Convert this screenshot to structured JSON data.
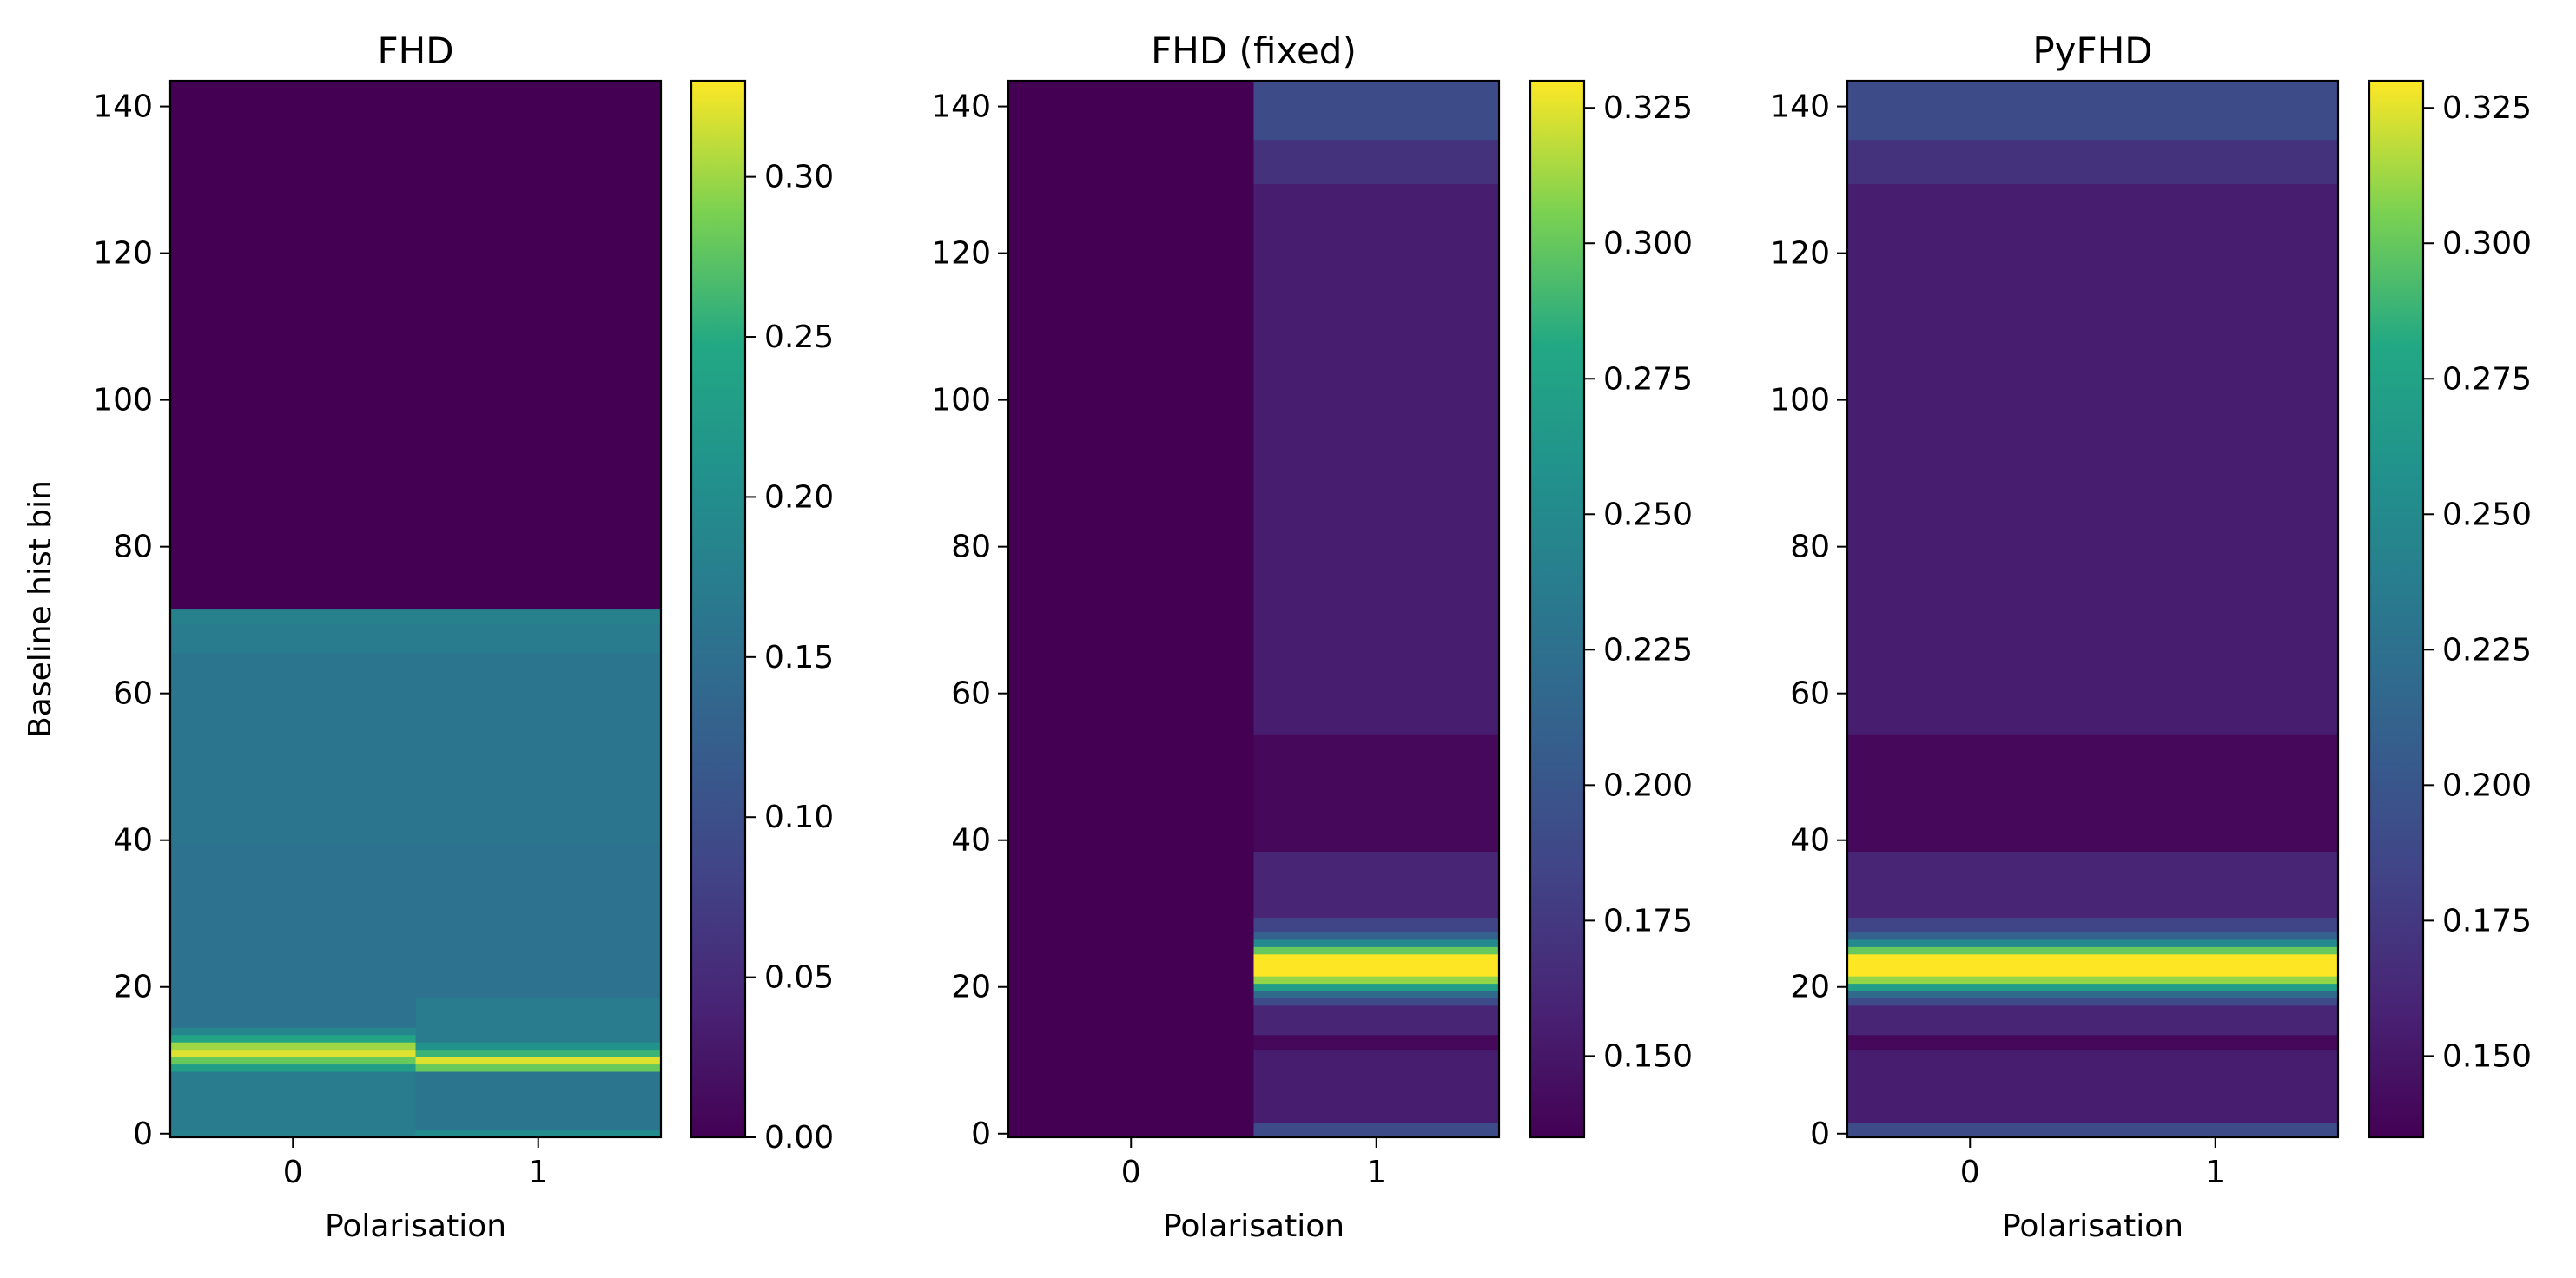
{
  "chart_data": [
    {
      "type": "heatmap",
      "title": "FHD",
      "xlabel": "Polarisation",
      "ylabel": "Baseline hist bin",
      "x": [
        0,
        1
      ],
      "xticks": [
        "0",
        "1"
      ],
      "ylim": [
        -0.5,
        143.5
      ],
      "yticks": [
        "0",
        "20",
        "40",
        "60",
        "80",
        "100",
        "120",
        "140"
      ],
      "colormap": "viridis",
      "colorbar": {
        "vmin": 0.0,
        "vmax": 0.33,
        "ticks": [
          "0.00",
          "0.05",
          "0.10",
          "0.15",
          "0.20",
          "0.25",
          "0.30"
        ]
      },
      "columns": [
        {
          "x": 0,
          "segments": [
            {
              "from": 0,
              "to": 1,
              "value": 0.18
            },
            {
              "from": 1,
              "to": 9,
              "value": 0.17
            },
            {
              "from": 9,
              "to": 10,
              "value": 0.23
            },
            {
              "from": 10,
              "to": 11,
              "value": 0.28
            },
            {
              "from": 11,
              "to": 12,
              "value": 0.32
            },
            {
              "from": 12,
              "to": 13,
              "value": 0.3
            },
            {
              "from": 13,
              "to": 14,
              "value": 0.24
            },
            {
              "from": 14,
              "to": 15,
              "value": 0.19
            },
            {
              "from": 15,
              "to": 40,
              "value": 0.155
            },
            {
              "from": 40,
              "to": 66,
              "value": 0.16
            },
            {
              "from": 66,
              "to": 70,
              "value": 0.17
            },
            {
              "from": 70,
              "to": 72,
              "value": 0.18
            },
            {
              "from": 72,
              "to": 144,
              "value": 0.0
            }
          ]
        },
        {
          "x": 1,
          "segments": [
            {
              "from": 0,
              "to": 1,
              "value": 0.2
            },
            {
              "from": 1,
              "to": 9,
              "value": 0.16
            },
            {
              "from": 9,
              "to": 10,
              "value": 0.28
            },
            {
              "from": 10,
              "to": 11,
              "value": 0.32
            },
            {
              "from": 11,
              "to": 12,
              "value": 0.26
            },
            {
              "from": 12,
              "to": 13,
              "value": 0.21
            },
            {
              "from": 13,
              "to": 19,
              "value": 0.17
            },
            {
              "from": 19,
              "to": 40,
              "value": 0.155
            },
            {
              "from": 40,
              "to": 66,
              "value": 0.16
            },
            {
              "from": 66,
              "to": 70,
              "value": 0.17
            },
            {
              "from": 70,
              "to": 72,
              "value": 0.18
            },
            {
              "from": 72,
              "to": 144,
              "value": 0.0
            }
          ]
        }
      ]
    },
    {
      "type": "heatmap",
      "title": "FHD (fixed)",
      "xlabel": "Polarisation",
      "ylabel": "",
      "x": [
        0,
        1
      ],
      "xticks": [
        "0",
        "1"
      ],
      "ylim": [
        -0.5,
        143.5
      ],
      "yticks": [
        "0",
        "20",
        "40",
        "60",
        "80",
        "100",
        "120",
        "140"
      ],
      "colormap": "viridis",
      "colorbar": {
        "vmin": 0.135,
        "vmax": 0.33,
        "ticks": [
          "0.150",
          "0.175",
          "0.200",
          "0.225",
          "0.250",
          "0.275",
          "0.300",
          "0.325"
        ]
      },
      "columns": [
        {
          "x": 0,
          "segments": [
            {
              "from": 0,
              "to": 144,
              "value": 0.135
            }
          ]
        },
        {
          "x": 1,
          "segments": [
            {
              "from": 0,
              "to": 2,
              "value": 0.19
            },
            {
              "from": 2,
              "to": 12,
              "value": 0.155
            },
            {
              "from": 12,
              "to": 14,
              "value": 0.14
            },
            {
              "from": 14,
              "to": 18,
              "value": 0.16
            },
            {
              "from": 18,
              "to": 19,
              "value": 0.19
            },
            {
              "from": 19,
              "to": 20,
              "value": 0.22
            },
            {
              "from": 20,
              "to": 21,
              "value": 0.27
            },
            {
              "from": 21,
              "to": 22,
              "value": 0.31
            },
            {
              "from": 22,
              "to": 25,
              "value": 0.33
            },
            {
              "from": 25,
              "to": 26,
              "value": 0.3
            },
            {
              "from": 26,
              "to": 27,
              "value": 0.25
            },
            {
              "from": 27,
              "to": 28,
              "value": 0.21
            },
            {
              "from": 28,
              "to": 30,
              "value": 0.185
            },
            {
              "from": 30,
              "to": 39,
              "value": 0.16
            },
            {
              "from": 39,
              "to": 55,
              "value": 0.14
            },
            {
              "from": 55,
              "to": 130,
              "value": 0.155
            },
            {
              "from": 130,
              "to": 136,
              "value": 0.17
            },
            {
              "from": 136,
              "to": 144,
              "value": 0.19
            }
          ]
        }
      ]
    },
    {
      "type": "heatmap",
      "title": "PyFHD",
      "xlabel": "Polarisation",
      "ylabel": "",
      "x": [
        0,
        1
      ],
      "xticks": [
        "0",
        "1"
      ],
      "ylim": [
        -0.5,
        143.5
      ],
      "yticks": [
        "0",
        "20",
        "40",
        "60",
        "80",
        "100",
        "120",
        "140"
      ],
      "colormap": "viridis",
      "colorbar": {
        "vmin": 0.135,
        "vmax": 0.33,
        "ticks": [
          "0.150",
          "0.175",
          "0.200",
          "0.225",
          "0.250",
          "0.275",
          "0.300",
          "0.325"
        ]
      },
      "columns": [
        {
          "x": 0,
          "segments": [
            {
              "from": 0,
              "to": 2,
              "value": 0.19
            },
            {
              "from": 2,
              "to": 12,
              "value": 0.155
            },
            {
              "from": 12,
              "to": 14,
              "value": 0.14
            },
            {
              "from": 14,
              "to": 18,
              "value": 0.16
            },
            {
              "from": 18,
              "to": 19,
              "value": 0.19
            },
            {
              "from": 19,
              "to": 20,
              "value": 0.22
            },
            {
              "from": 20,
              "to": 21,
              "value": 0.27
            },
            {
              "from": 21,
              "to": 22,
              "value": 0.31
            },
            {
              "from": 22,
              "to": 25,
              "value": 0.33
            },
            {
              "from": 25,
              "to": 26,
              "value": 0.3
            },
            {
              "from": 26,
              "to": 27,
              "value": 0.25
            },
            {
              "from": 27,
              "to": 28,
              "value": 0.21
            },
            {
              "from": 28,
              "to": 30,
              "value": 0.185
            },
            {
              "from": 30,
              "to": 39,
              "value": 0.16
            },
            {
              "from": 39,
              "to": 55,
              "value": 0.14
            },
            {
              "from": 55,
              "to": 130,
              "value": 0.155
            },
            {
              "from": 130,
              "to": 136,
              "value": 0.17
            },
            {
              "from": 136,
              "to": 144,
              "value": 0.19
            }
          ]
        },
        {
          "x": 1,
          "segments": [
            {
              "from": 0,
              "to": 2,
              "value": 0.19
            },
            {
              "from": 2,
              "to": 12,
              "value": 0.155
            },
            {
              "from": 12,
              "to": 14,
              "value": 0.14
            },
            {
              "from": 14,
              "to": 18,
              "value": 0.16
            },
            {
              "from": 18,
              "to": 19,
              "value": 0.19
            },
            {
              "from": 19,
              "to": 20,
              "value": 0.22
            },
            {
              "from": 20,
              "to": 21,
              "value": 0.27
            },
            {
              "from": 21,
              "to": 22,
              "value": 0.31
            },
            {
              "from": 22,
              "to": 25,
              "value": 0.33
            },
            {
              "from": 25,
              "to": 26,
              "value": 0.3
            },
            {
              "from": 26,
              "to": 27,
              "value": 0.25
            },
            {
              "from": 27,
              "to": 28,
              "value": 0.21
            },
            {
              "from": 28,
              "to": 30,
              "value": 0.185
            },
            {
              "from": 30,
              "to": 39,
              "value": 0.16
            },
            {
              "from": 39,
              "to": 55,
              "value": 0.14
            },
            {
              "from": 55,
              "to": 130,
              "value": 0.155
            },
            {
              "from": 130,
              "to": 136,
              "value": 0.17
            },
            {
              "from": 136,
              "to": 144,
              "value": 0.19
            }
          ]
        }
      ]
    }
  ]
}
